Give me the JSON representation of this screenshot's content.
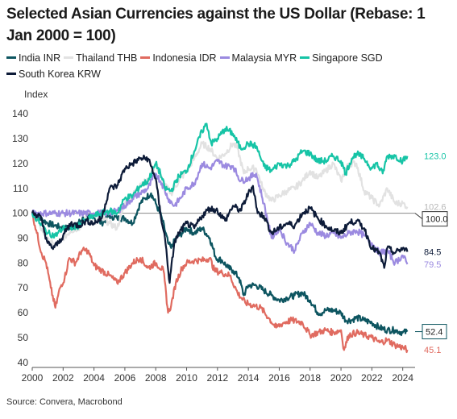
{
  "title": "Selected Asian Currencies against the US Dollar (Rebase: 1 Jan 2000 = 100)",
  "source": "Source: Convera, Macrobond",
  "chart_data": {
    "type": "line",
    "title": "Selected Asian Currencies against the US Dollar (Rebase: 1 Jan 2000 = 100)",
    "xlabel": "",
    "ylabel": "Index",
    "xlim": [
      2000,
      2024.8
    ],
    "ylim": [
      38,
      142
    ],
    "x_ticks": [
      2000,
      2002,
      2004,
      2006,
      2008,
      2010,
      2012,
      2014,
      2016,
      2018,
      2020,
      2022,
      2024
    ],
    "y_ticks": [
      40,
      50,
      60,
      70,
      80,
      90,
      100,
      110,
      120,
      130,
      140
    ],
    "grid": false,
    "legend_position": "top",
    "reference_line": 100,
    "series": [
      {
        "name": "India INR",
        "color": "#0d5560",
        "end_label": "52.4",
        "boxed": true,
        "x": [
          2000,
          2000.5,
          2001,
          2001.5,
          2002,
          2002.5,
          2003,
          2003.5,
          2004,
          2004.5,
          2005,
          2005.5,
          2006,
          2006.5,
          2007,
          2007.3,
          2007.7,
          2008,
          2008.4,
          2008.8,
          2009,
          2009.3,
          2009.7,
          2010,
          2010.5,
          2011,
          2011.5,
          2011.9,
          2012.3,
          2012.7,
          2013,
          2013.4,
          2013.7,
          2014,
          2014.5,
          2015,
          2015.5,
          2016,
          2016.5,
          2017,
          2017.5,
          2018,
          2018.5,
          2018.8,
          2019,
          2019.5,
          2020,
          2020.3,
          2020.7,
          2021,
          2021.5,
          2022,
          2022.5,
          2023,
          2023.5,
          2024,
          2024.3
        ],
        "y": [
          100,
          98,
          96,
          95,
          94,
          94,
          96,
          99,
          98,
          96,
          99,
          98,
          98,
          96,
          104,
          106,
          108,
          104,
          98,
          88,
          86,
          90,
          92,
          94,
          92,
          94,
          90,
          82,
          81,
          78,
          77,
          74,
          67,
          71,
          71,
          69,
          67,
          65,
          66,
          67,
          68,
          65,
          60,
          60,
          61,
          61,
          60,
          57,
          57,
          58,
          57,
          56,
          54,
          53,
          53,
          52,
          52.4
        ]
      },
      {
        "name": "Thailand THB",
        "color": "#e2e2e2",
        "end_label": "102.6",
        "x": [
          2000,
          2000.5,
          2001,
          2001.5,
          2002,
          2002.5,
          2003,
          2003.5,
          2004,
          2004.5,
          2005,
          2005.5,
          2006,
          2006.5,
          2007,
          2007.5,
          2008,
          2008.5,
          2009,
          2009.5,
          2010,
          2010.5,
          2011,
          2011.5,
          2012,
          2012.5,
          2013,
          2013.3,
          2013.7,
          2014,
          2014.5,
          2015,
          2015.5,
          2016,
          2016.5,
          2017,
          2017.5,
          2018,
          2018.5,
          2019,
          2019.5,
          2020,
          2020.5,
          2021,
          2021.5,
          2022,
          2022.5,
          2023,
          2023.5,
          2024,
          2024.3
        ],
        "y": [
          100,
          95,
          89,
          87,
          90,
          93,
          94,
          98,
          96,
          98,
          96,
          94,
          104,
          107,
          112,
          113,
          120,
          112,
          108,
          113,
          117,
          122,
          128,
          126,
          122,
          124,
          128,
          126,
          116,
          118,
          118,
          109,
          105,
          107,
          109,
          110,
          113,
          117,
          114,
          117,
          120,
          113,
          120,
          120,
          109,
          106,
          103,
          110,
          104,
          104,
          102.6
        ]
      },
      {
        "name": "Indonesia IDR",
        "color": "#e06b60",
        "end_label": "45.1",
        "x": [
          2000,
          2000.3,
          2000.6,
          2000.9,
          2001.2,
          2001.5,
          2001.8,
          2002.1,
          2002.4,
          2002.8,
          2003.2,
          2003.6,
          2004,
          2004.5,
          2005,
          2005.5,
          2006,
          2006.5,
          2007,
          2007.5,
          2008,
          2008.5,
          2008.8,
          2009,
          2009.3,
          2009.7,
          2010,
          2010.5,
          2011,
          2011.5,
          2011.8,
          2012.3,
          2012.8,
          2013.3,
          2013.8,
          2014.3,
          2014.8,
          2015.3,
          2015.8,
          2016.3,
          2016.8,
          2017.5,
          2018,
          2018.5,
          2019,
          2019.5,
          2020,
          2020.2,
          2020.5,
          2021,
          2021.5,
          2022,
          2022.5,
          2023,
          2023.5,
          2024,
          2024.3
        ],
        "y": [
          100,
          92,
          84,
          80,
          70,
          62,
          70,
          74,
          82,
          80,
          85,
          85,
          79,
          77,
          75,
          72,
          76,
          80,
          82,
          78,
          80,
          77,
          60,
          63,
          72,
          78,
          80,
          81,
          81,
          82,
          77,
          76,
          75,
          68,
          64,
          63,
          62,
          58,
          54,
          56,
          57,
          56,
          51,
          52,
          53,
          52,
          53,
          45,
          51,
          52,
          51,
          50,
          48,
          49,
          47,
          46,
          45.1
        ]
      },
      {
        "name": "Malaysia MYR",
        "color": "#9b8ae0",
        "end_label": "79.5",
        "x": [
          2000,
          2001,
          2002,
          2003,
          2004,
          2005,
          2005.5,
          2006,
          2006.5,
          2007,
          2007.5,
          2008,
          2008.4,
          2008.8,
          2009.2,
          2009.6,
          2010,
          2010.5,
          2011,
          2011.5,
          2012,
          2012.5,
          2013,
          2013.5,
          2014,
          2014.5,
          2015,
          2015.5,
          2016,
          2016.5,
          2017,
          2017.5,
          2018,
          2018.5,
          2019,
          2019.5,
          2020,
          2020.5,
          2021,
          2021.5,
          2022,
          2022.5,
          2023,
          2023.5,
          2024,
          2024.3
        ],
        "y": [
          100,
          100,
          100,
          100,
          100,
          100,
          101,
          103,
          106,
          108,
          110,
          116,
          112,
          106,
          103,
          106,
          110,
          112,
          120,
          118,
          121,
          119,
          119,
          113,
          114,
          116,
          104,
          90,
          94,
          88,
          85,
          92,
          96,
          92,
          91,
          92,
          90,
          92,
          93,
          91,
          88,
          84,
          85,
          80,
          83,
          79.5
        ]
      },
      {
        "name": "Singapore SGD",
        "color": "#16c4a6",
        "end_label": "123.0",
        "x": [
          2000,
          2000.5,
          2001,
          2001.5,
          2002,
          2002.5,
          2003,
          2003.5,
          2004,
          2004.5,
          2005,
          2005.5,
          2006,
          2006.5,
          2007,
          2007.5,
          2008,
          2008.3,
          2008.6,
          2009,
          2009.5,
          2010,
          2010.5,
          2011,
          2011.3,
          2011.6,
          2012,
          2012.5,
          2013,
          2013.5,
          2014,
          2014.5,
          2015,
          2015.5,
          2016,
          2016.5,
          2017,
          2017.5,
          2018,
          2018.5,
          2019,
          2019.5,
          2020,
          2020.3,
          2020.7,
          2021,
          2021.5,
          2022,
          2022.3,
          2022.7,
          2023,
          2023.5,
          2024,
          2024.3
        ],
        "y": [
          100,
          96,
          92,
          91,
          94,
          94,
          95,
          97,
          99,
          100,
          101,
          100,
          106,
          107,
          111,
          113,
          120,
          116,
          110,
          109,
          115,
          117,
          125,
          133,
          136,
          128,
          130,
          134,
          132,
          126,
          128,
          127,
          119,
          117,
          120,
          119,
          121,
          125,
          124,
          121,
          121,
          123,
          121,
          116,
          122,
          124,
          122,
          118,
          120,
          116,
          123,
          123,
          121,
          123.0
        ]
      },
      {
        "name": "South Korea KRW",
        "color": "#0d1b38",
        "end_label": "84.5",
        "x": [
          2000,
          2000.5,
          2001,
          2001.3,
          2001.7,
          2002,
          2002.5,
          2003,
          2003.5,
          2004,
          2004.5,
          2005,
          2005.5,
          2006,
          2006.5,
          2007,
          2007.5,
          2008,
          2008.3,
          2008.6,
          2008.9,
          2009.2,
          2009.5,
          2010,
          2010.5,
          2011,
          2011.5,
          2012,
          2012.5,
          2013,
          2013.5,
          2014,
          2014.3,
          2014.6,
          2015,
          2015.5,
          2016,
          2016.5,
          2017,
          2017.5,
          2018,
          2018.5,
          2019,
          2019.5,
          2020,
          2020.5,
          2021,
          2021.5,
          2022,
          2022.5,
          2022.8,
          2023,
          2023.5,
          2024,
          2024.3
        ],
        "y": [
          100,
          99,
          88,
          86,
          88,
          91,
          96,
          95,
          97,
          96,
          98,
          110,
          111,
          118,
          120,
          122,
          122,
          114,
          100,
          90,
          72,
          88,
          92,
          96,
          94,
          99,
          102,
          101,
          97,
          103,
          101,
          108,
          111,
          100,
          99,
          92,
          94,
          96,
          95,
          100,
          102,
          98,
          95,
          93,
          92,
          96,
          97,
          94,
          86,
          84,
          78,
          86,
          84,
          86,
          84.5
        ]
      }
    ]
  }
}
